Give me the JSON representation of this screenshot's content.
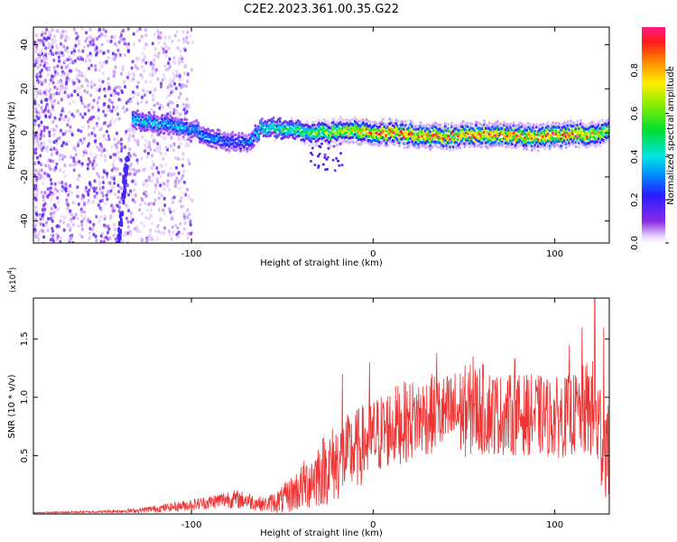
{
  "figure": {
    "title": "C2E2.2023.361.00.35.G22"
  },
  "chart_data": [
    {
      "type": "heatmap",
      "xlabel": "Height of straight line (km)",
      "ylabel": "Frequency (Hz)",
      "xlim": [
        -187,
        130
      ],
      "ylim": [
        -50,
        48
      ],
      "xticks": [
        -100,
        0,
        100
      ],
      "yticks": [
        -40,
        -20,
        0,
        20,
        40
      ],
      "colorbar": {
        "label": "Normalized spectral amplitude",
        "range": [
          0,
          1
        ],
        "ticks": [
          "0.0",
          "0.2",
          "0.4",
          "0.6",
          "0.8"
        ],
        "tick_values": [
          0.0,
          0.2,
          0.4,
          0.6,
          0.8
        ]
      },
      "noise_region_x": [
        -187,
        -100
      ],
      "signal_ridge": {
        "x": [
          -133,
          -120,
          -110,
          -100,
          -90,
          -80,
          -70,
          -62,
          -55,
          -45,
          -35,
          -25,
          -15,
          0,
          20,
          40,
          55,
          70,
          90,
          110,
          130
        ],
        "freq_hz": [
          7,
          5,
          4,
          2,
          -1,
          -3,
          -4,
          3,
          3,
          2,
          1,
          1,
          2,
          1,
          0,
          -1,
          0,
          0,
          -1,
          0,
          1
        ],
        "peak_amplitude": [
          0.45,
          0.4,
          0.4,
          0.35,
          0.35,
          0.3,
          0.3,
          0.45,
          0.5,
          0.5,
          0.6,
          0.7,
          0.8,
          0.9,
          0.95,
          0.9,
          0.95,
          0.95,
          0.9,
          0.95,
          0.7
        ]
      }
    },
    {
      "type": "line",
      "xlabel": "Height of straight line (km)",
      "ylabel": "SNR (10 * v/v)",
      "y_exponent": "(x10",
      "y_exponent_power": "4",
      "y_exponent_close": ")",
      "xlim": [
        -187,
        130
      ],
      "ylim": [
        0,
        1.85
      ],
      "xticks": [
        -100,
        0,
        100
      ],
      "yticks": [
        0.5,
        1.0,
        1.5
      ],
      "ytick_labels": [
        "0.5",
        "1.0",
        "1.5"
      ],
      "color": "#ee3333",
      "envelope": {
        "x": [
          -187,
          -150,
          -130,
          -110,
          -90,
          -80,
          -70,
          -60,
          -50,
          -40,
          -30,
          -20,
          -10,
          0,
          10,
          20,
          30,
          40,
          50,
          60,
          70,
          80,
          90,
          100,
          110,
          120,
          125,
          130
        ],
        "mean": [
          0.01,
          0.02,
          0.03,
          0.06,
          0.1,
          0.13,
          0.12,
          0.08,
          0.12,
          0.22,
          0.35,
          0.45,
          0.55,
          0.65,
          0.75,
          0.8,
          0.85,
          0.85,
          0.88,
          0.9,
          0.85,
          0.85,
          0.85,
          0.82,
          0.85,
          0.9,
          0.7,
          0.5
        ],
        "spread": [
          0.005,
          0.01,
          0.02,
          0.04,
          0.06,
          0.08,
          0.08,
          0.06,
          0.12,
          0.2,
          0.3,
          0.35,
          0.35,
          0.35,
          0.35,
          0.35,
          0.35,
          0.35,
          0.4,
          0.4,
          0.35,
          0.35,
          0.35,
          0.35,
          0.35,
          0.45,
          0.5,
          0.4
        ]
      },
      "peaks": [
        {
          "x": -17,
          "y": 1.2
        },
        {
          "x": -2,
          "y": 1.3
        },
        {
          "x": 35,
          "y": 1.38
        },
        {
          "x": 55,
          "y": 1.35
        },
        {
          "x": 78,
          "y": 1.33
        },
        {
          "x": 108,
          "y": 1.45
        },
        {
          "x": 115,
          "y": 1.6
        },
        {
          "x": 122,
          "y": 1.85
        },
        {
          "x": 127,
          "y": 1.6
        }
      ]
    }
  ]
}
